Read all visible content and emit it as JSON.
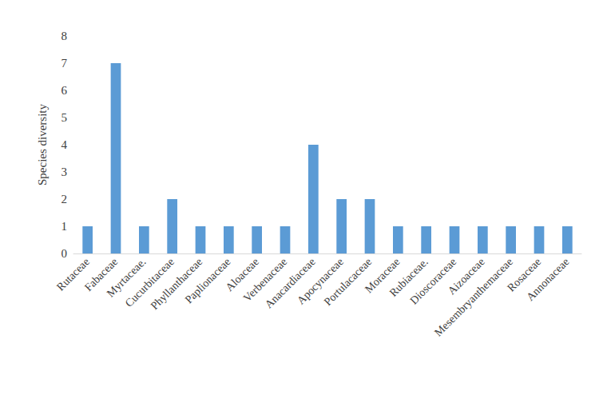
{
  "chart_data": {
    "type": "bar",
    "y_label": "Species diversity",
    "categories": [
      "Rutaceae",
      "Fabaceae",
      "Myrtaceae.",
      "Cucurbitaceae",
      "Phyllanthaceae",
      "Paplionaceae",
      "Aloaceae",
      "Verbenaceae",
      "Anacardiaceae",
      "Apocynaceae",
      "Portulacaceae",
      "Moraceae",
      "Rubiaceae.",
      "Dioscoraceae",
      "Aizoaceae",
      "Mesembryanthemaceae",
      "Rosaceae",
      "Annonaceae"
    ],
    "values": [
      1,
      7,
      1,
      2,
      1,
      1,
      1,
      1,
      4,
      2,
      2,
      1,
      1,
      1,
      1,
      1,
      1,
      1
    ],
    "color": "#5b9bd5",
    "ylim": [
      0,
      8
    ],
    "yticks": [
      0,
      1,
      2,
      3,
      4,
      5,
      6,
      7,
      8
    ],
    "grid": false
  }
}
